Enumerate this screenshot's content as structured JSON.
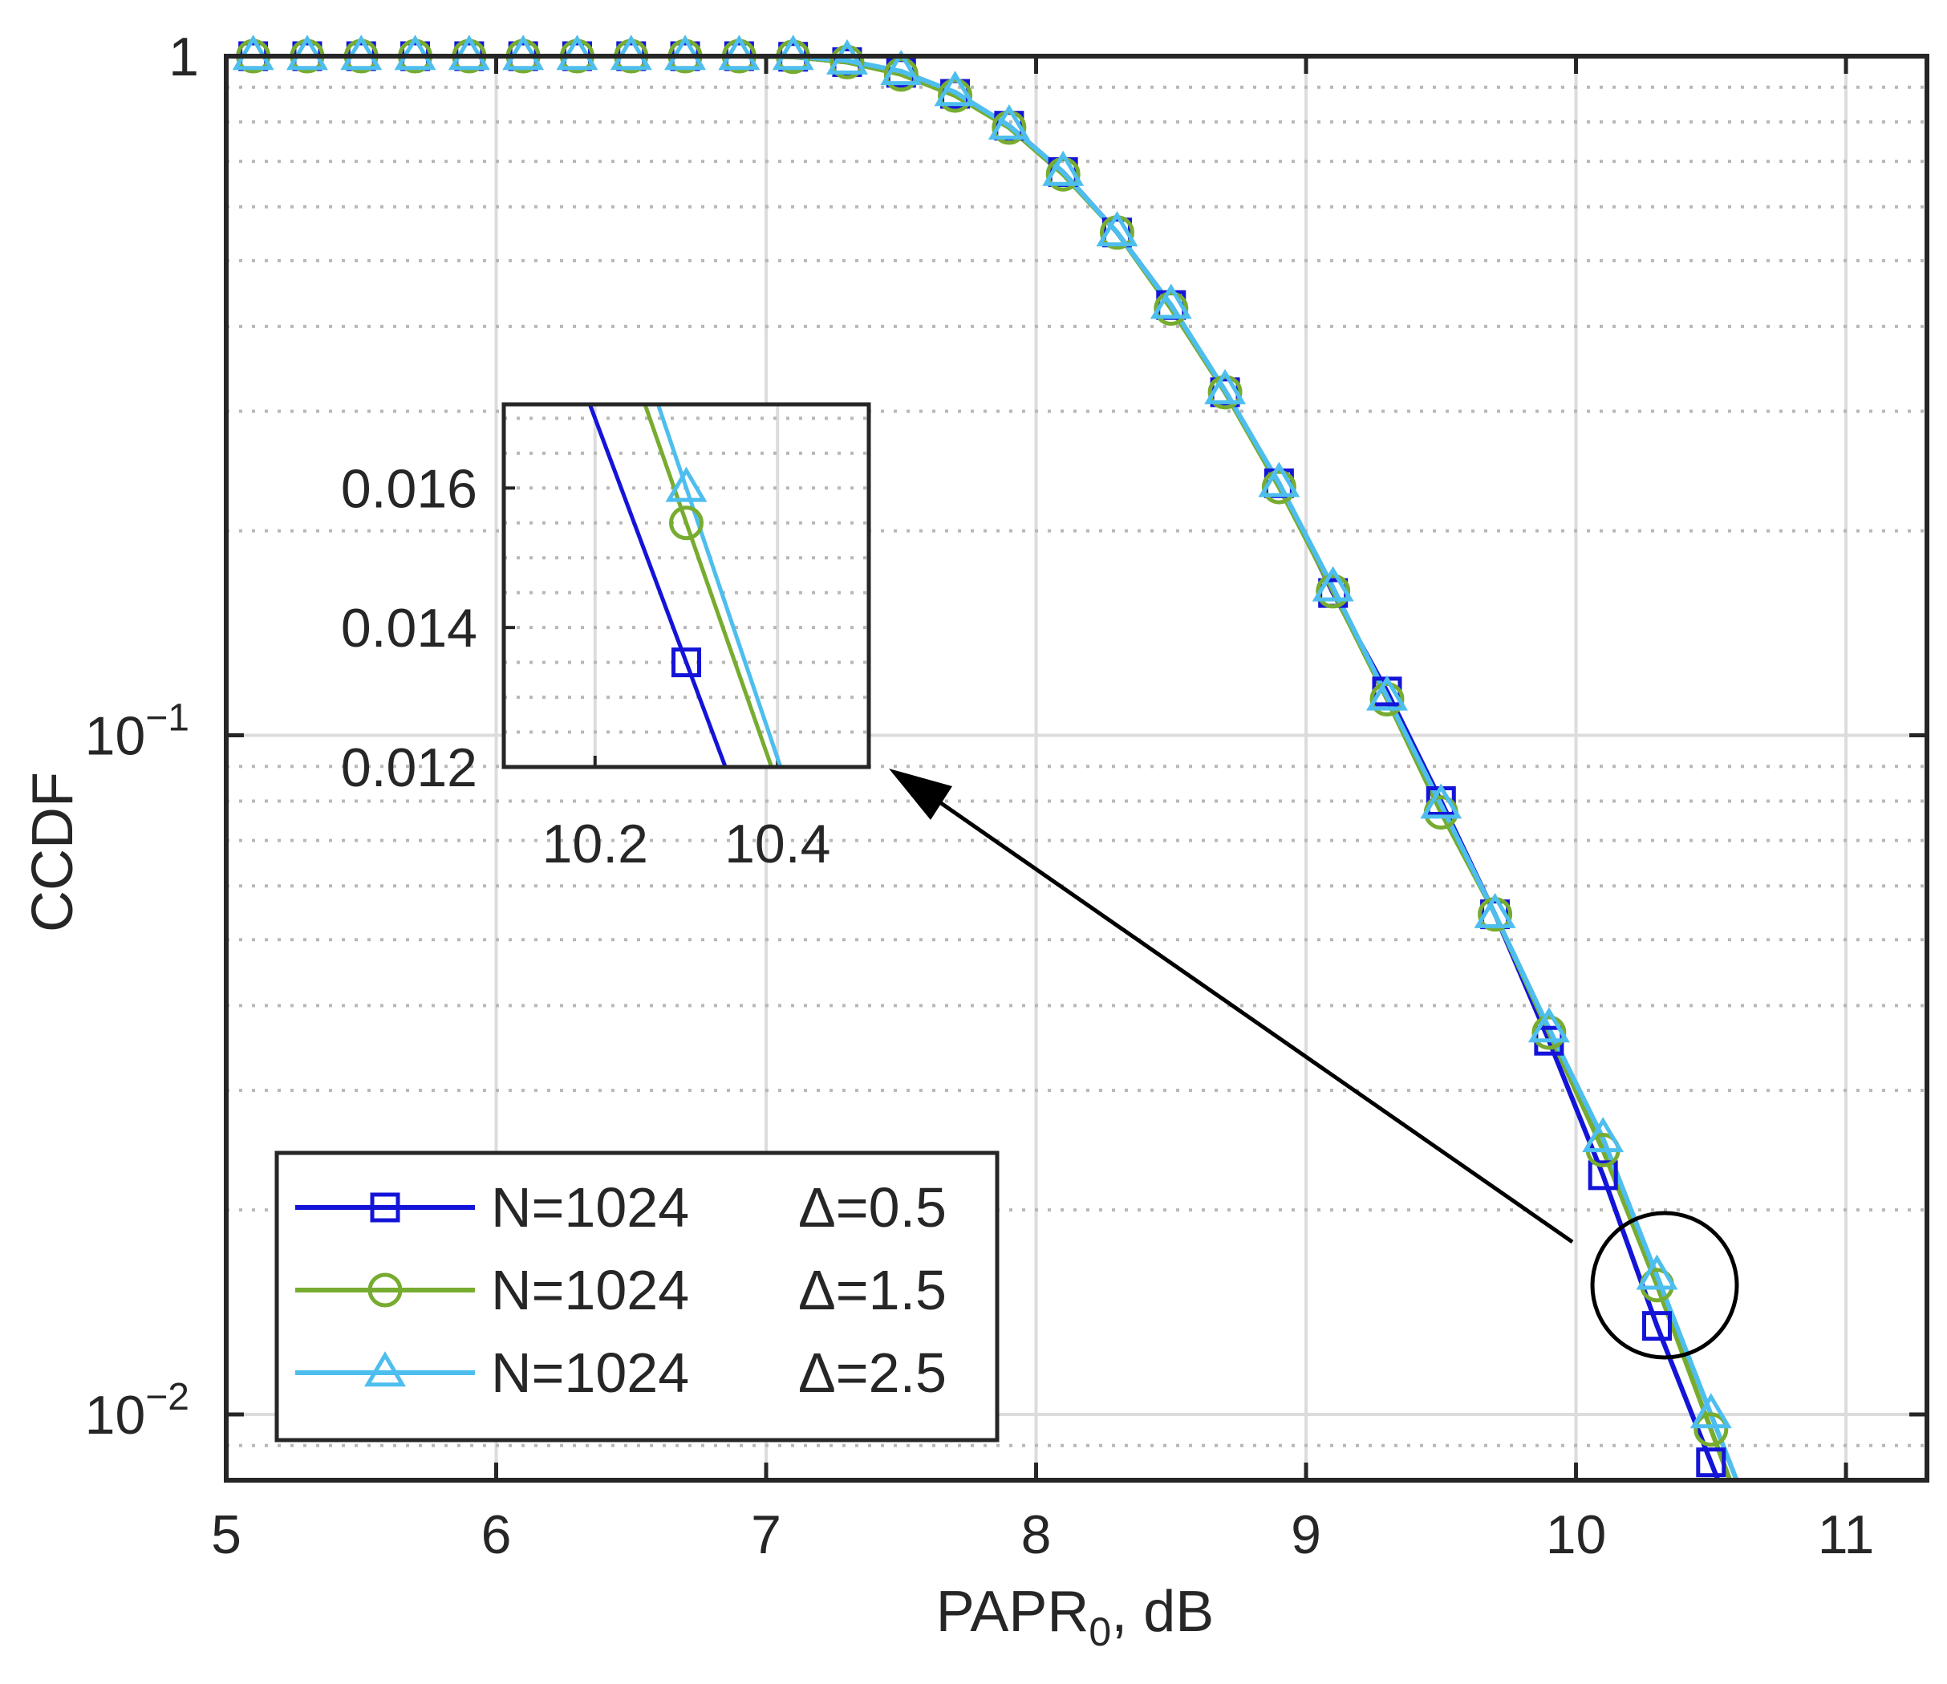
{
  "chart_data": {
    "type": "line",
    "xlabel": "PAPR",
    "xlabel_sub": "0",
    "xlabel_suffix": ", dB",
    "ylabel": "CCDF",
    "yscale": "log",
    "xlim": [
      5,
      11.3
    ],
    "ylim": [
      0.008,
      1
    ],
    "xticks": [
      5,
      6,
      7,
      8,
      9,
      10,
      11
    ],
    "yticks": [
      {
        "value": 1,
        "base": "1",
        "exp": ""
      },
      {
        "value": 0.1,
        "base": "10",
        "exp": "−1"
      },
      {
        "value": 0.01,
        "base": "10",
        "exp": "−2"
      }
    ],
    "grid": true,
    "legend_position": "bottom-left",
    "colors": {
      "s0": "#1414d8",
      "s1": "#77ac30",
      "s2": "#4dbeee",
      "axis": "#262626",
      "grid": "#dcdcdc"
    },
    "series": [
      {
        "name": "N=1024",
        "param": "Δ=0.5",
        "marker": "square",
        "x": [
          5.1,
          5.3,
          5.5,
          5.7,
          5.9,
          6.1,
          6.3,
          6.5,
          6.7,
          6.9,
          7.1,
          7.3,
          7.5,
          7.7,
          7.9,
          8.1,
          8.3,
          8.5,
          8.7,
          8.9,
          9.1,
          9.3,
          9.5,
          9.7,
          9.9,
          10.1,
          10.3,
          10.5
        ],
        "y": [
          1,
          1,
          1,
          1,
          1,
          1,
          1,
          1,
          1,
          1,
          0.998,
          0.98,
          0.945,
          0.88,
          0.79,
          0.675,
          0.55,
          0.43,
          0.32,
          0.235,
          0.162,
          0.116,
          0.08,
          0.0545,
          0.0355,
          0.0225,
          0.0135,
          0.0085
        ]
      },
      {
        "name": "N=1024",
        "param": "Δ=1.5",
        "marker": "circle",
        "x": [
          5.1,
          5.3,
          5.5,
          5.7,
          5.9,
          6.1,
          6.3,
          6.5,
          6.7,
          6.9,
          7.1,
          7.3,
          7.5,
          7.7,
          7.9,
          8.1,
          8.3,
          8.5,
          8.7,
          8.9,
          9.1,
          9.3,
          9.5,
          9.7,
          9.9,
          10.1,
          10.3,
          10.5
        ],
        "y": [
          1,
          1,
          1,
          1,
          1,
          1,
          1,
          1,
          1,
          1,
          0.998,
          0.98,
          0.94,
          0.875,
          0.785,
          0.67,
          0.55,
          0.425,
          0.32,
          0.232,
          0.163,
          0.113,
          0.077,
          0.0545,
          0.0365,
          0.0245,
          0.0155,
          0.0095
        ]
      },
      {
        "name": "N=1024",
        "param": "Δ=2.5",
        "marker": "triangle",
        "x": [
          5.1,
          5.3,
          5.5,
          5.7,
          5.9,
          6.1,
          6.3,
          6.5,
          6.7,
          6.9,
          7.1,
          7.3,
          7.5,
          7.7,
          7.9,
          8.1,
          8.3,
          8.5,
          8.7,
          8.9,
          9.1,
          9.3,
          9.5,
          9.7,
          9.9,
          10.1,
          10.3,
          10.5
        ],
        "y": [
          1,
          1,
          1,
          1,
          1,
          1,
          1,
          1,
          1,
          1,
          1,
          0.985,
          0.95,
          0.885,
          0.79,
          0.675,
          0.55,
          0.43,
          0.322,
          0.235,
          0.165,
          0.114,
          0.079,
          0.0545,
          0.037,
          0.0255,
          0.016,
          0.01
        ]
      }
    ],
    "inset": {
      "xlim": [
        10.1,
        10.5
      ],
      "ylim": [
        0.012,
        0.0172
      ],
      "xticks": [
        10.2,
        10.4
      ],
      "xtick_labels": [
        "10.2",
        "10.4"
      ],
      "yticks": [
        0.012,
        0.014,
        0.016
      ],
      "ytick_labels": [
        "0.012",
        "0.014",
        "0.016"
      ],
      "points": [
        {
          "series": 0,
          "x": 10.3,
          "y": 0.0135
        },
        {
          "series": 1,
          "x": 10.3,
          "y": 0.0155
        },
        {
          "series": 2,
          "x": 10.3,
          "y": 0.016
        }
      ]
    },
    "annotation": {
      "type": "zoom-circle-with-arrow",
      "circle_center": {
        "x": 10.3,
        "y": 0.0155
      }
    }
  }
}
